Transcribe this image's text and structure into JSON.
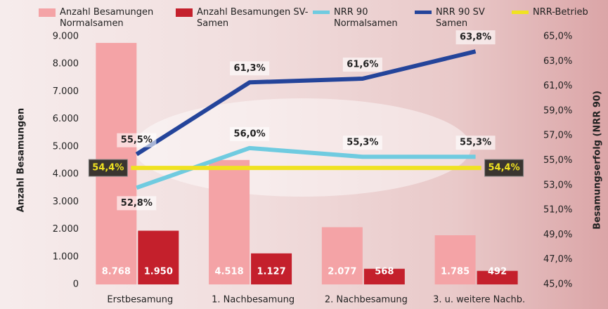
{
  "chart_data": {
    "type": "bar-line",
    "categories": [
      "Erstbesamung",
      "1. Nachbesamung",
      "2. Nachbesamung",
      "3. u. weitere Nachb."
    ],
    "ylabel": "Anzahl Besamungen",
    "y2label": "Besamungserfolg (NRR 90)",
    "ylim": [
      0,
      9000
    ],
    "yticks": [
      0,
      {
        "value": 1000,
        "label": "1.000"
      },
      {
        "value": 2000,
        "label": "2.000"
      },
      {
        "value": 3000,
        "label": "3.000"
      },
      {
        "value": 4000,
        "label": "4.000"
      },
      {
        "value": 5000,
        "label": "5.000"
      },
      {
        "value": 6000,
        "label": "6.000"
      },
      {
        "value": 7000,
        "label": "7.000"
      },
      {
        "value": 8000,
        "label": "8.000"
      },
      {
        "value": 9000,
        "label": "9.000"
      }
    ],
    "y2lim": [
      45,
      65
    ],
    "y2ticks": [
      {
        "value": 45,
        "label": "45,0%"
      },
      {
        "value": 47,
        "label": "47,0%"
      },
      {
        "value": 49,
        "label": "49,0%"
      },
      {
        "value": 51,
        "label": "51,0%"
      },
      {
        "value": 53,
        "label": "53,0%"
      },
      {
        "value": 55,
        "label": "55,0%"
      },
      {
        "value": 57,
        "label": "57,0%"
      },
      {
        "value": 59,
        "label": "59,0%"
      },
      {
        "value": 61,
        "label": "61,0%"
      },
      {
        "value": 63,
        "label": "63,0%"
      },
      {
        "value": 65,
        "label": "65,0%"
      }
    ],
    "series": [
      {
        "name": "Anzahl Besamungen Normalsamen",
        "kind": "bar",
        "color": "#f4a3a6",
        "values": [
          8768,
          4518,
          2077,
          1785
        ],
        "value_labels": [
          "8.768",
          "4.518",
          "2.077",
          "1.785"
        ]
      },
      {
        "name": "Anzahl Besamungen SV-Samen",
        "kind": "bar",
        "color": "#c4202c",
        "values": [
          1950,
          1127,
          568,
          492
        ],
        "value_labels": [
          "1.950",
          "1.127",
          "568",
          "492"
        ]
      },
      {
        "name": "NRR 90 Normalsamen",
        "kind": "line",
        "axis": "y2",
        "color": "#6fcbe0",
        "values": [
          52.8,
          56.0,
          55.3,
          55.3
        ],
        "value_labels": [
          "52,8%",
          "56,0%",
          "55,3%",
          "55,3%"
        ]
      },
      {
        "name": "NRR 90 SV Samen",
        "kind": "line",
        "axis": "y2",
        "color": "#24449a",
        "values": [
          55.5,
          61.3,
          61.6,
          63.8
        ],
        "value_labels": [
          "55,5%",
          "61,3%",
          "61,6%",
          "63,8%"
        ]
      },
      {
        "name": "NRR-Betrieb",
        "kind": "line",
        "axis": "y2",
        "color": "#f0e221",
        "values": [
          54.4,
          54.4,
          54.4,
          54.4
        ],
        "value_labels": [
          "54,4%",
          null,
          null,
          "54,4%"
        ]
      }
    ]
  }
}
